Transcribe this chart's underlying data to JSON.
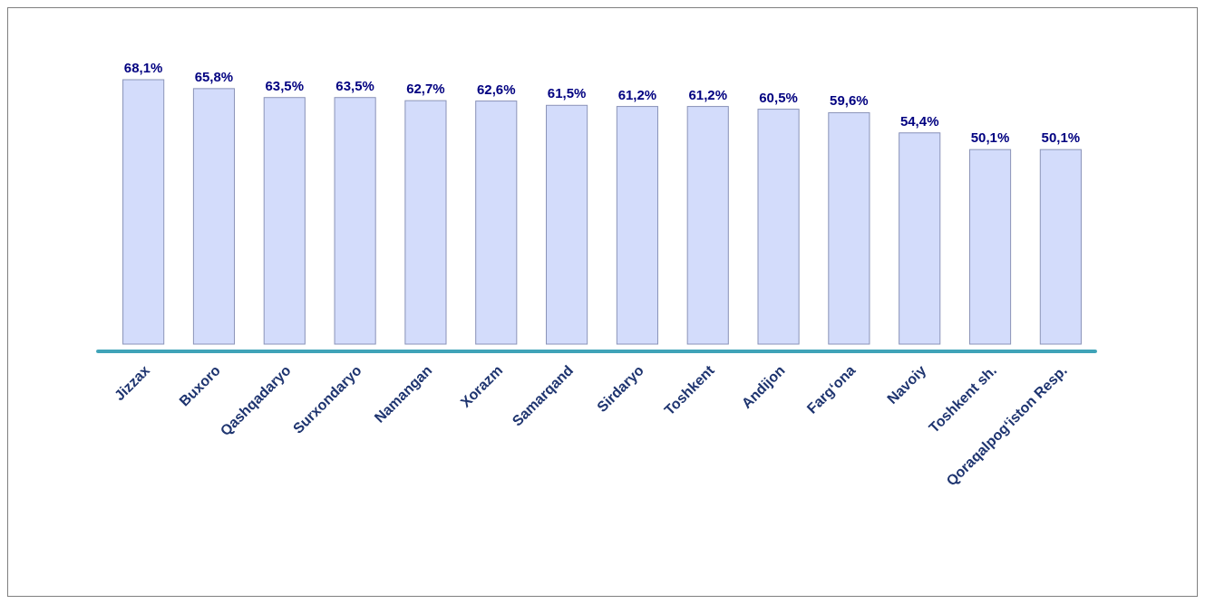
{
  "chart_data": {
    "type": "bar",
    "categories": [
      "Jizzax",
      "Buxoro",
      "Qashqadaryo",
      "Surxondaryo",
      "Namangan",
      "Xorazm",
      "Samarqand",
      "Sirdaryo",
      "Toshkent",
      "Andijon",
      "Farg‘ona",
      "Navoiy",
      "Toshkent sh.",
      "Qoraqalpog‘iston Resp."
    ],
    "values": [
      68.1,
      65.8,
      63.5,
      63.5,
      62.7,
      62.6,
      61.5,
      61.2,
      61.2,
      60.5,
      59.6,
      54.4,
      50.1,
      50.1
    ],
    "value_labels": [
      "68,1%",
      "65,8%",
      "63,5%",
      "63,5%",
      "62,7%",
      "62,6%",
      "61,5%",
      "61,2%",
      "61,2%",
      "60,5%",
      "59,6%",
      "54,4%",
      "50,1%",
      "50,1%"
    ],
    "color": "#d3dcfb"
  }
}
